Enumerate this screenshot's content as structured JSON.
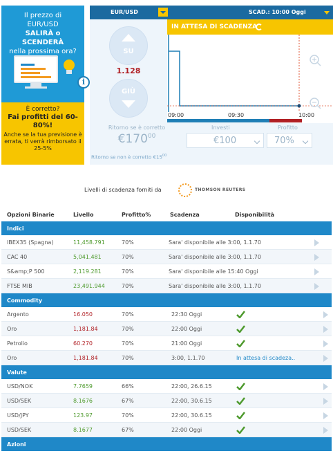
{
  "promo": {
    "q_line1": "Il prezzo di",
    "q_line2": "EUR/USD",
    "q_line3": "SALIRÀ o SCENDERÀ",
    "q_line4": "nella prossima ora?",
    "correct": "È corretto?",
    "profit": "Fai profitti del 60-80%!",
    "refund": "Anche se la tua previsione è errata, ti verrà rimborsato il 25-5%"
  },
  "widget": {
    "pair": "EUR/USD",
    "expiry": "SCAD.: 10:00 Oggi",
    "up_label": "SU",
    "down_label": "GIÙ",
    "rate": "1.128",
    "status": "IN ATTESA DI SCADENZA",
    "ticks": [
      "09:00",
      "09:30",
      "10:00"
    ],
    "return_caption": "Ritorno se è corretto",
    "return_amount": "€170",
    "return_cents": "00",
    "return_note": "Ritorno se non è corretto €15",
    "return_note_cents": "00",
    "invest_caption": "Investi",
    "invest_value": "€100",
    "profit_caption": "Profitto",
    "profit_value": "70%"
  },
  "provider": {
    "text": "Livelli di scadenza forniti da",
    "brand": "THOMSON REUTERS"
  },
  "table": {
    "headers": [
      "Opzioni Binarie",
      "Livello",
      "Profitto%",
      "Scadenza",
      "Disponibilità"
    ],
    "sections": [
      {
        "name": "Indici",
        "rows": [
          {
            "name": "IBEX35 (Spagna)",
            "level": "11,458.791",
            "profit": "70%",
            "expiry": "Sara' disponibile alle 3:00, 1.1.70"
          },
          {
            "name": "CAC 40",
            "level": "5,041.481",
            "profit": "70%",
            "expiry": "Sara' disponibile alle 3:00, 1.1.70"
          },
          {
            "name": "S&amp;P 500",
            "level": "2,119.281",
            "profit": "70%",
            "expiry": "Sara' disponibile alle 15:40 Oggi"
          },
          {
            "name": "FTSE MIB",
            "level": "23,491.944",
            "profit": "70%",
            "expiry": "Sara' disponibile alle 3:00, 1.1.70"
          }
        ]
      },
      {
        "name": "Commodity",
        "rows": [
          {
            "name": "Argento",
            "level": "16.050",
            "profit": "70%",
            "expiry": "22:30 Oggi",
            "avail": "check"
          },
          {
            "name": "Oro",
            "level": "1,181.84",
            "profit": "70%",
            "expiry": "22:00 Oggi",
            "avail": "check"
          },
          {
            "name": "Petrolio",
            "level": "60.270",
            "profit": "70%",
            "expiry": "21:00 Oggi",
            "avail": "check"
          },
          {
            "name": "Oro",
            "level": "1,181.84",
            "profit": "70%",
            "expiry": "3:00, 1.1.70",
            "avail": "In attesa di scadeza.."
          }
        ]
      },
      {
        "name": "Valute",
        "rows": [
          {
            "name": "USD/NOK",
            "level": "7.7659",
            "profit": "66%",
            "expiry": "22:00, 26.6.15",
            "avail": "check"
          },
          {
            "name": "USD/SEK",
            "level": "8.1676",
            "profit": "67%",
            "expiry": "22:00, 30.6.15",
            "avail": "check"
          },
          {
            "name": "USD/JPY",
            "level": "123.97",
            "profit": "70%",
            "expiry": "22:00, 30.6.15",
            "avail": "check"
          },
          {
            "name": "USD/SEK",
            "level": "8.1677",
            "profit": "67%",
            "expiry": "22:00 Oggi",
            "avail": "check"
          }
        ]
      },
      {
        "name": "Azioni",
        "rows": []
      }
    ]
  },
  "colors": {
    "blue": "#1f88c8",
    "yellow": "#f7c500",
    "red": "#b01f24",
    "green": "#4e9a2d"
  }
}
